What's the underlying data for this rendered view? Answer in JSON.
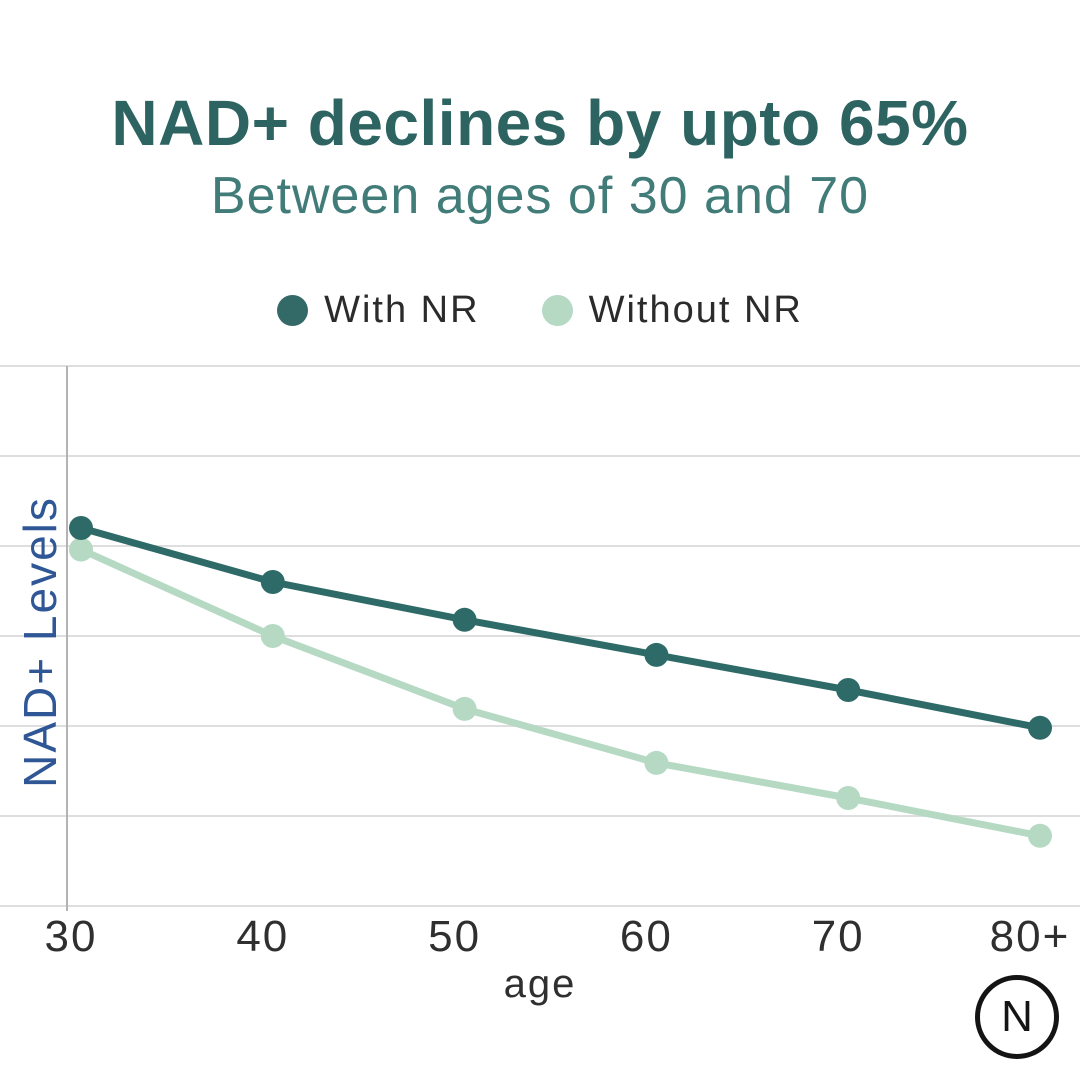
{
  "header": {
    "title": "NAD+ declines by upto 65%",
    "subtitle": "Between ages of 30 and 70"
  },
  "legend": [
    {
      "label": "With NR",
      "color": "#336a68"
    },
    {
      "label": "Without NR",
      "color": "#b5d9c3"
    }
  ],
  "chart_data": {
    "type": "line",
    "categories": [
      "30",
      "40",
      "50",
      "60",
      "70",
      "80+"
    ],
    "series": [
      {
        "name": "With NR",
        "color": "#2e6a67",
        "values": [
          70,
          60,
          53,
          46.5,
          40,
          33
        ]
      },
      {
        "name": "Without NR",
        "color": "#b5d9c3",
        "values": [
          66,
          50,
          36.5,
          26.5,
          20,
          13
        ]
      }
    ],
    "title": "",
    "xlabel": "age",
    "ylabel": "NAD+ Levels",
    "ylim": [
      0,
      100
    ],
    "y_tick_labels_shown": false,
    "grid": "horizontal",
    "legend_position": "top-center",
    "colors": {
      "grid_line": "#dedede",
      "axis_line": "#b3b3b3",
      "tick_label": "#2f2f2f",
      "y_axis_label": "#2f5796"
    }
  },
  "logo": {
    "letter": "N"
  }
}
